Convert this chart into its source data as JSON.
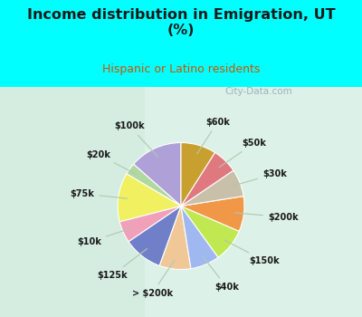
{
  "title": "Income distribution in Emigration, UT\n(%)",
  "subtitle": "Hispanic or Latino residents",
  "title_color": "#1a1a1a",
  "subtitle_color": "#cc5500",
  "bg_color": "#00ffff",
  "chart_bg_left": "#c8ecd8",
  "chart_bg_right": "#e8f8f0",
  "watermark": "City-Data.com",
  "labels": [
    "$100k",
    "$20k",
    "$75k",
    "$10k",
    "$125k",
    "> $200k",
    "$40k",
    "$150k",
    "$200k",
    "$30k",
    "$50k",
    "$60k"
  ],
  "values": [
    13.5,
    3.0,
    12.5,
    5.5,
    10.0,
    8.0,
    7.5,
    8.5,
    9.0,
    7.0,
    6.5,
    9.0
  ],
  "colors": [
    "#b0a0d8",
    "#b0d8a0",
    "#f0f060",
    "#f0a0b8",
    "#7080c8",
    "#f0c898",
    "#a0b8f0",
    "#c0e850",
    "#f09848",
    "#c8c0a8",
    "#e07880",
    "#c8a030"
  ],
  "startangle": 90
}
